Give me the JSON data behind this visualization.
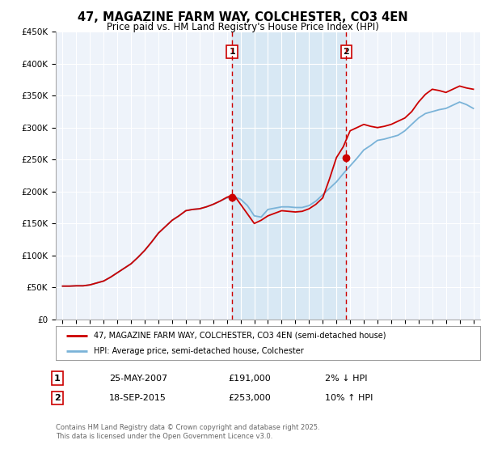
{
  "title": "47, MAGAZINE FARM WAY, COLCHESTER, CO3 4EN",
  "subtitle": "Price paid vs. HM Land Registry's House Price Index (HPI)",
  "legend_line1": "47, MAGAZINE FARM WAY, COLCHESTER, CO3 4EN (semi-detached house)",
  "legend_line2": "HPI: Average price, semi-detached house, Colchester",
  "annotation1_date": "25-MAY-2007",
  "annotation1_price": "£191,000",
  "annotation1_hpi": "2% ↓ HPI",
  "annotation1_year": 2007.38,
  "annotation1_value": 191000,
  "annotation2_date": "18-SEP-2015",
  "annotation2_price": "£253,000",
  "annotation2_hpi": "10% ↑ HPI",
  "annotation2_year": 2015.72,
  "annotation2_value": 253000,
  "footer": "Contains HM Land Registry data © Crown copyright and database right 2025.\nThis data is licensed under the Open Government Licence v3.0.",
  "background_color": "#ffffff",
  "plot_bg_color": "#eef3fa",
  "grid_color": "#ffffff",
  "hpi_color": "#7ab3d8",
  "price_color": "#cc0000",
  "marker_color": "#cc0000",
  "vline_color": "#cc0000",
  "highlight_color": "#d8e8f4",
  "ylim": [
    0,
    450000
  ],
  "yticks": [
    0,
    50000,
    100000,
    150000,
    200000,
    250000,
    300000,
    350000,
    400000,
    450000
  ],
  "xlim_start": 1994.5,
  "xlim_end": 2025.5,
  "years_hpi": [
    1995,
    1995.5,
    1996,
    1996.5,
    1997,
    1997.5,
    1998,
    1998.5,
    1999,
    1999.5,
    2000,
    2000.5,
    2001,
    2001.5,
    2002,
    2002.5,
    2003,
    2003.5,
    2004,
    2004.5,
    2005,
    2005.5,
    2006,
    2006.5,
    2007,
    2007.5,
    2008,
    2008.5,
    2009,
    2009.5,
    2010,
    2010.5,
    2011,
    2011.5,
    2012,
    2012.5,
    2013,
    2013.5,
    2014,
    2014.5,
    2015,
    2015.5,
    2016,
    2016.5,
    2017,
    2017.5,
    2018,
    2018.5,
    2019,
    2019.5,
    2020,
    2020.5,
    2021,
    2021.5,
    2022,
    2022.5,
    2023,
    2023.5,
    2024,
    2024.5,
    2025
  ],
  "hpi_values": [
    52000,
    52000,
    52500,
    52500,
    54000,
    57000,
    60000,
    66000,
    73000,
    80000,
    87000,
    97000,
    108000,
    121000,
    135000,
    145000,
    155000,
    162000,
    170000,
    172000,
    173000,
    176000,
    180000,
    185000,
    190000,
    192000,
    188000,
    178000,
    162000,
    160000,
    172000,
    174000,
    176000,
    176000,
    175000,
    175000,
    178000,
    185000,
    195000,
    205000,
    215000,
    228000,
    240000,
    252000,
    265000,
    272000,
    280000,
    282000,
    285000,
    288000,
    295000,
    305000,
    315000,
    322000,
    325000,
    328000,
    330000,
    335000,
    340000,
    336000,
    330000
  ],
  "price_values": [
    52000,
    52000,
    52500,
    52500,
    54000,
    57000,
    60000,
    66000,
    73000,
    80000,
    87000,
    97000,
    108000,
    121000,
    135000,
    145000,
    155000,
    162000,
    170000,
    172000,
    173000,
    176000,
    180000,
    185000,
    191000,
    195000,
    180000,
    165000,
    150000,
    155000,
    162000,
    166000,
    170000,
    169000,
    168000,
    169000,
    173000,
    180000,
    190000,
    220000,
    253000,
    270000,
    295000,
    300000,
    305000,
    302000,
    300000,
    302000,
    305000,
    310000,
    315000,
    325000,
    340000,
    352000,
    360000,
    358000,
    355000,
    360000,
    365000,
    362000,
    360000
  ]
}
